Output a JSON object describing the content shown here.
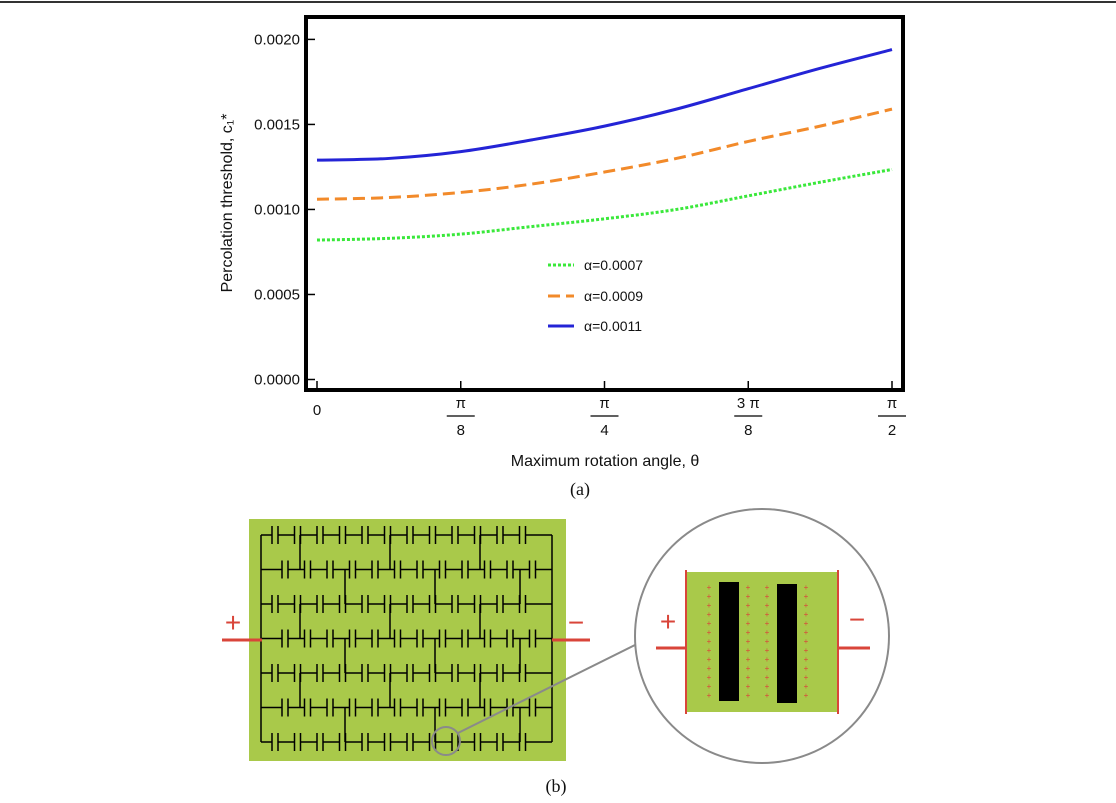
{
  "chart_data": {
    "type": "line",
    "xlabel": "Maximum rotation angle, θ",
    "ylabel": "Percolation threshold, c₁*",
    "xlim": [
      0,
      1.5708
    ],
    "ylim": [
      -5e-05,
      0.00212
    ],
    "y_ticks": [
      {
        "value": 0.0,
        "label": "0.0000"
      },
      {
        "value": 0.0005,
        "label": "0.0005"
      },
      {
        "value": 0.001,
        "label": "0.0010"
      },
      {
        "value": 0.0015,
        "label": "0.0015"
      },
      {
        "value": 0.002,
        "label": "0.0020"
      }
    ],
    "x_ticks": [
      {
        "value": 0,
        "label": "0",
        "den": ""
      },
      {
        "value": 0.3927,
        "label": "π",
        "den": "8"
      },
      {
        "value": 0.7854,
        "label": "π",
        "den": "4"
      },
      {
        "value": 1.1781,
        "label": "3 π",
        "den": "8"
      },
      {
        "value": 1.5708,
        "label": "π",
        "den": "2"
      }
    ],
    "legend_position": "center",
    "grid": false,
    "series": [
      {
        "name": "α=0.0007",
        "color": "#39e83a",
        "style": "dotted",
        "x": [
          0,
          0.1963,
          0.3927,
          0.589,
          0.7854,
          0.9817,
          1.1781,
          1.3744,
          1.5708
        ],
        "y": [
          0.00082,
          0.00083,
          0.000855,
          0.0009,
          0.000945,
          0.001,
          0.00108,
          0.00116,
          0.001235
        ]
      },
      {
        "name": "α=0.0009",
        "color": "#f28a2a",
        "style": "dashed",
        "x": [
          0,
          0.1963,
          0.3927,
          0.589,
          0.7854,
          0.9817,
          1.1781,
          1.3744,
          1.5708
        ],
        "y": [
          0.00106,
          0.00107,
          0.0011,
          0.00115,
          0.00122,
          0.0013,
          0.0014,
          0.00149,
          0.00159
        ]
      },
      {
        "name": "α=0.0011",
        "color": "#2424d6",
        "style": "solid",
        "x": [
          0,
          0.1963,
          0.3927,
          0.589,
          0.7854,
          0.9817,
          1.1781,
          1.3744,
          1.5708
        ],
        "y": [
          0.00129,
          0.0013,
          0.00134,
          0.00141,
          0.00149,
          0.00159,
          0.00171,
          0.00183,
          0.00194
        ]
      }
    ]
  },
  "captions": {
    "a": "(a)",
    "b": "(b)"
  },
  "diagram": {
    "plus_sign": "+",
    "minus_sign": "−",
    "panel_color": "#a9c94a",
    "line_color": "#d9453a",
    "plate_color": "#000000"
  }
}
